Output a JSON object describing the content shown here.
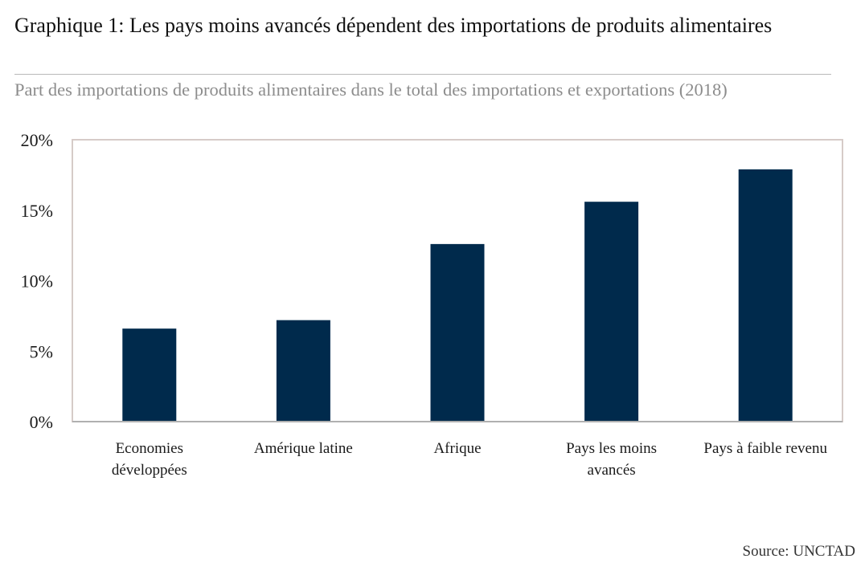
{
  "title": "Graphique 1: Les pays moins avancés dépendent des importations de produits alimentaires",
  "subtitle": "Part des importations de produits alimentaires dans le total des importations et exportations (2018)",
  "source": {
    "label": "Source:",
    "value": "UNCTAD"
  },
  "colors": {
    "bar": "#002a4c",
    "frame": "#d6cbc8",
    "axis": "#b0b0b0"
  },
  "chart_data": {
    "type": "bar",
    "title": "",
    "xlabel": "",
    "ylabel": "",
    "ylim": [
      0,
      20
    ],
    "yticks": [
      0,
      5,
      10,
      15,
      20
    ],
    "ytick_labels": [
      "0%",
      "5%",
      "10%",
      "15%",
      "20%"
    ],
    "categories": [
      [
        "Economies",
        "développées"
      ],
      [
        "Amérique latine"
      ],
      [
        "Afrique"
      ],
      [
        "Pays les moins",
        "avancés"
      ],
      [
        "Pays à faible revenu"
      ]
    ],
    "series": [
      {
        "values": [
          6.6,
          7.2,
          12.6,
          15.6,
          17.9
        ]
      }
    ],
    "grid": false,
    "legend": "none"
  }
}
